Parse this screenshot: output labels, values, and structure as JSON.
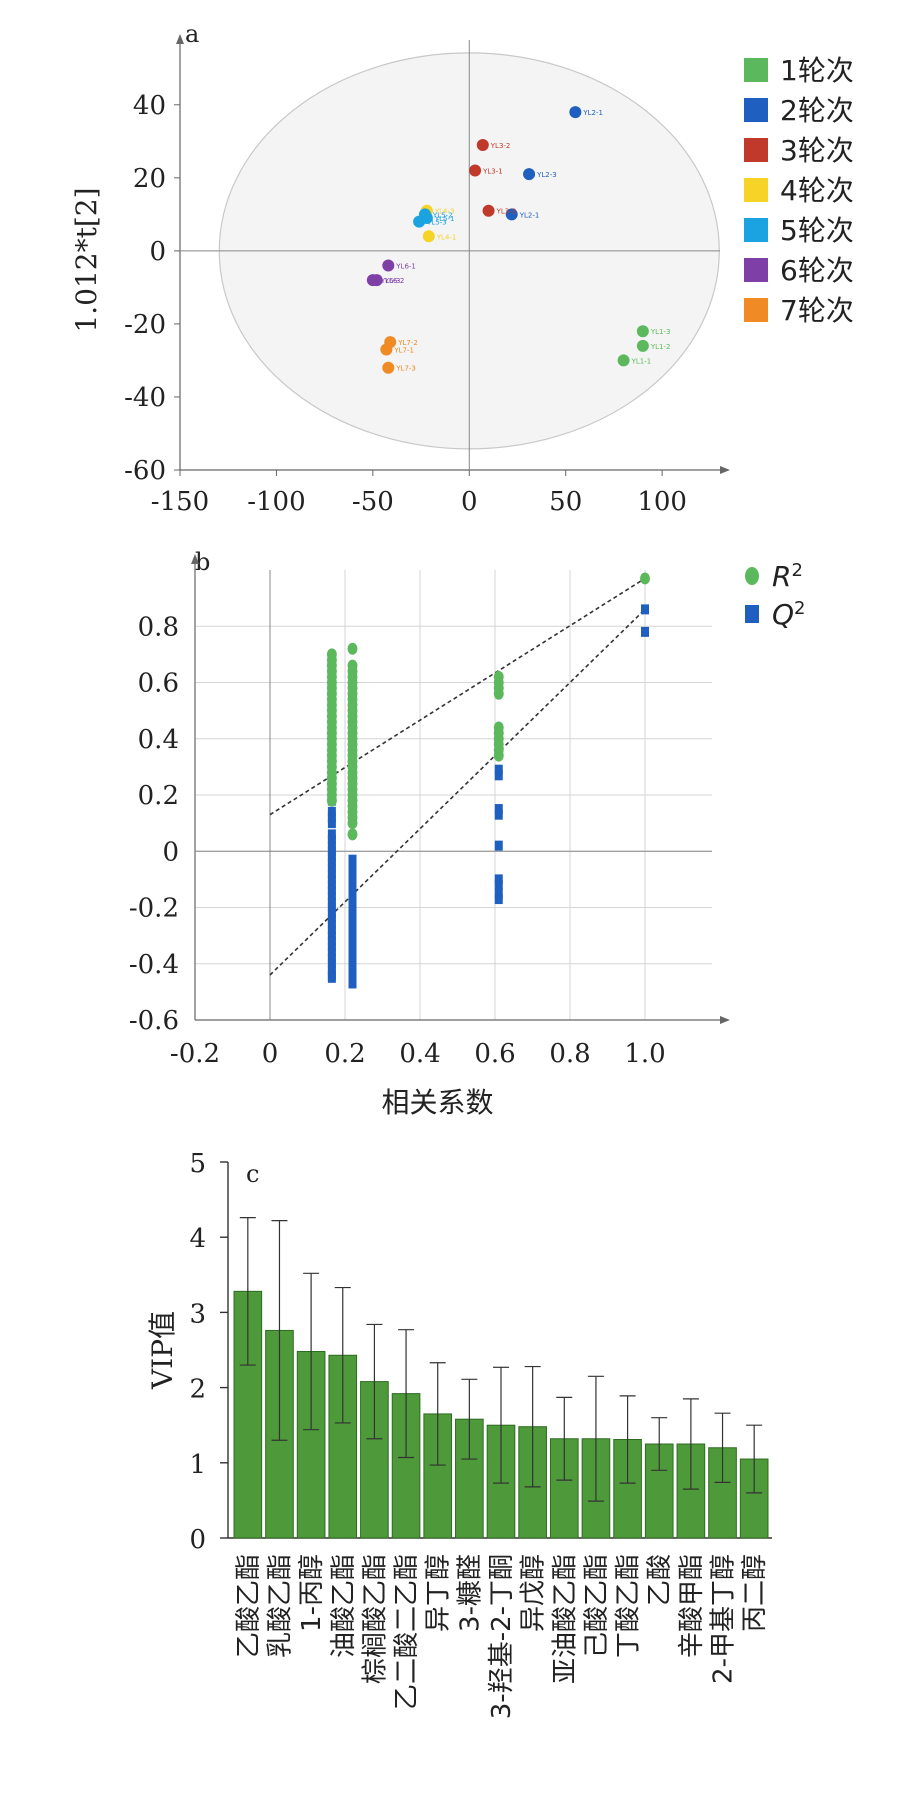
{
  "chart_data": [
    {
      "panel": "a",
      "type": "scatter",
      "ylabel": "1.012*t[2]",
      "xlim": [
        -150,
        130
      ],
      "ylim": [
        -60,
        55
      ],
      "xticks": [
        -150,
        -100,
        -50,
        0,
        50,
        100
      ],
      "yticks": [
        -60,
        -40,
        -20,
        0,
        20,
        40
      ],
      "legend_position": "right",
      "series": [
        {
          "name": "1轮次",
          "color": "#5cb85c",
          "points": [
            {
              "label": "YL1-3",
              "x": 90,
              "y": -22
            },
            {
              "label": "YL1-2",
              "x": 90,
              "y": -26
            },
            {
              "label": "YL1-1",
              "x": 80,
              "y": -30
            }
          ]
        },
        {
          "name": "2轮次",
          "color": "#1f5fbf",
          "points": [
            {
              "label": "YL2-1",
              "x": 55,
              "y": 38
            },
            {
              "label": "YL2-3",
              "x": 31,
              "y": 21
            },
            {
              "label": "YL2-1",
              "x": 22,
              "y": 10
            }
          ]
        },
        {
          "name": "3轮次",
          "color": "#c0392b",
          "points": [
            {
              "label": "YL3-2",
              "x": 7,
              "y": 29
            },
            {
              "label": "YL3-1",
              "x": 3,
              "y": 22
            },
            {
              "label": "YL3-3",
              "x": 10,
              "y": 11
            }
          ]
        },
        {
          "name": "4轮次",
          "color": "#f5d327",
          "points": [
            {
              "label": "YL4-3",
              "x": -22,
              "y": 11
            },
            {
              "label": "YL4-1",
              "x": -21,
              "y": 4
            }
          ]
        },
        {
          "name": "5轮次",
          "color": "#1aa3e0",
          "points": [
            {
              "label": "YL5-2",
              "x": -23,
              "y": 10
            },
            {
              "label": "YL5-3",
              "x": -26,
              "y": 8
            },
            {
              "label": "YL5-1",
              "x": -22,
              "y": 9
            }
          ]
        },
        {
          "name": "6轮次",
          "color": "#7e3fa6",
          "points": [
            {
              "label": "YL6-1",
              "x": -42,
              "y": -4
            },
            {
              "label": "YL6-3",
              "x": -50,
              "y": -8
            },
            {
              "label": "YL6-2",
              "x": -48,
              "y": -8
            }
          ]
        },
        {
          "name": "7轮次",
          "color": "#f08a24",
          "points": [
            {
              "label": "YL7-2",
              "x": -41,
              "y": -25
            },
            {
              "label": "YL7-1",
              "x": -43,
              "y": -27
            },
            {
              "label": "YL7-3",
              "x": -42,
              "y": -32
            }
          ]
        }
      ]
    },
    {
      "panel": "b",
      "type": "scatter",
      "xlabel": "相关系数",
      "xlim": [
        -0.2,
        1.2
      ],
      "ylim": [
        -0.6,
        1.0
      ],
      "xticks": [
        -0.2,
        0,
        0.2,
        0.4,
        0.6,
        0.8,
        1.0
      ],
      "xtick_labels": [
        "-0.2",
        "0",
        "0.2",
        "0.4",
        "0.6",
        "0.8",
        "1.0"
      ],
      "yticks": [
        -0.6,
        -0.4,
        -0.2,
        0,
        0.2,
        0.4,
        0.6,
        0.8
      ],
      "ytick_labels": [
        "-0.6",
        "-0.4",
        "-0.2",
        "0",
        "0.2",
        "0.4",
        "0.6",
        "0.8"
      ],
      "legend_position": "top-right",
      "series": [
        {
          "name": "R",
          "name_superscript": "2",
          "marker": "circle",
          "color": "#5cb85c",
          "x": [
            0.165,
            0.165,
            0.165,
            0.165,
            0.165,
            0.165,
            0.165,
            0.165,
            0.165,
            0.165,
            0.165,
            0.165,
            0.165,
            0.165,
            0.165,
            0.165,
            0.165,
            0.165,
            0.165,
            0.165,
            0.165,
            0.165,
            0.165,
            0.165,
            0.165,
            0.165,
            0.165,
            0.22,
            0.22,
            0.22,
            0.22,
            0.22,
            0.22,
            0.22,
            0.22,
            0.22,
            0.22,
            0.22,
            0.22,
            0.22,
            0.22,
            0.22,
            0.22,
            0.22,
            0.22,
            0.22,
            0.22,
            0.22,
            0.22,
            0.22,
            0.22,
            0.22,
            0.22,
            0.22,
            0.22,
            0.22,
            0.22,
            0.22,
            0.61,
            0.61,
            0.61,
            0.61,
            0.61,
            0.61,
            0.61,
            0.61,
            0.61,
            0.61,
            1.0
          ],
          "y": [
            0.7,
            0.68,
            0.66,
            0.64,
            0.62,
            0.6,
            0.58,
            0.56,
            0.54,
            0.52,
            0.5,
            0.48,
            0.46,
            0.44,
            0.42,
            0.4,
            0.38,
            0.36,
            0.34,
            0.32,
            0.3,
            0.28,
            0.26,
            0.24,
            0.22,
            0.2,
            0.18,
            0.72,
            0.66,
            0.64,
            0.62,
            0.6,
            0.58,
            0.56,
            0.54,
            0.52,
            0.5,
            0.48,
            0.46,
            0.44,
            0.42,
            0.4,
            0.38,
            0.36,
            0.34,
            0.32,
            0.3,
            0.28,
            0.26,
            0.24,
            0.22,
            0.2,
            0.18,
            0.16,
            0.14,
            0.12,
            0.1,
            0.06,
            0.62,
            0.6,
            0.58,
            0.56,
            0.44,
            0.42,
            0.4,
            0.38,
            0.36,
            0.34,
            0.97
          ]
        },
        {
          "name": "Q",
          "name_superscript": "2",
          "marker": "square",
          "color": "#1f5fbf",
          "x": [
            0.165,
            0.165,
            0.165,
            0.165,
            0.165,
            0.165,
            0.165,
            0.165,
            0.165,
            0.165,
            0.165,
            0.165,
            0.165,
            0.165,
            0.165,
            0.165,
            0.165,
            0.165,
            0.165,
            0.165,
            0.165,
            0.165,
            0.165,
            0.165,
            0.165,
            0.165,
            0.165,
            0.165,
            0.165,
            0.165,
            0.165,
            0.165,
            0.22,
            0.22,
            0.22,
            0.22,
            0.22,
            0.22,
            0.22,
            0.22,
            0.22,
            0.22,
            0.22,
            0.22,
            0.22,
            0.22,
            0.22,
            0.22,
            0.22,
            0.22,
            0.22,
            0.22,
            0.22,
            0.22,
            0.61,
            0.61,
            0.61,
            0.61,
            0.61,
            0.61,
            0.61,
            0.61,
            0.61,
            1.0,
            1.0
          ],
          "y": [
            0.2,
            0.18,
            0.14,
            0.1,
            0.06,
            0.04,
            0.02,
            0.0,
            -0.02,
            -0.04,
            -0.06,
            -0.08,
            -0.1,
            -0.12,
            -0.14,
            -0.16,
            -0.18,
            -0.2,
            -0.22,
            -0.24,
            -0.26,
            -0.28,
            -0.3,
            -0.32,
            -0.34,
            -0.36,
            -0.38,
            -0.4,
            -0.42,
            -0.44,
            0.12,
            -0.45,
            0.14,
            0.12,
            -0.03,
            -0.06,
            -0.09,
            -0.12,
            -0.15,
            -0.18,
            -0.21,
            -0.24,
            -0.27,
            -0.3,
            -0.33,
            -0.36,
            -0.39,
            -0.42,
            -0.44,
            -0.46,
            -0.47,
            -0.05,
            -0.2,
            -0.35,
            0.29,
            0.27,
            0.15,
            0.13,
            0.02,
            -0.1,
            -0.12,
            -0.15,
            -0.17,
            0.86,
            0.78
          ]
        }
      ],
      "trend_lines": [
        {
          "series": "R2",
          "x1": 0,
          "y1": 0.13,
          "x2": 1.0,
          "y2": 0.97
        },
        {
          "series": "Q2",
          "x1": 0,
          "y1": -0.44,
          "x2": 1.0,
          "y2": 0.86
        }
      ]
    },
    {
      "panel": "c",
      "type": "bar",
      "ylabel": "VIP值",
      "ylim": [
        0,
        5
      ],
      "yticks": [
        0,
        1,
        2,
        3,
        4,
        5
      ],
      "color": "#4e9a3a",
      "categories": [
        "乙酸乙酯",
        "乳酸乙酯",
        "1-丙醇",
        "油酸乙酯",
        "棕榈酸乙酯",
        "乙二酸二乙酯",
        "异丁醇",
        "3-糠醛",
        "3-羟基-2-丁酮",
        "异戊醇",
        "亚油酸乙酯",
        "己酸乙酯",
        "丁酸乙酯",
        "乙酸",
        "辛酸甲酯",
        "2-甲基丁醇",
        "丙二醇"
      ],
      "values": [
        3.28,
        2.76,
        2.48,
        2.43,
        2.08,
        1.92,
        1.65,
        1.58,
        1.5,
        1.48,
        1.32,
        1.32,
        1.31,
        1.25,
        1.25,
        1.2,
        1.05
      ],
      "errors": [
        0.98,
        1.46,
        1.04,
        0.9,
        0.76,
        0.85,
        0.68,
        0.53,
        0.77,
        0.8,
        0.55,
        0.83,
        0.58,
        0.35,
        0.6,
        0.46,
        0.45
      ]
    }
  ],
  "panels": {
    "a": {
      "letter": "a"
    },
    "b": {
      "letter": "b"
    },
    "c": {
      "letter": "c"
    }
  }
}
